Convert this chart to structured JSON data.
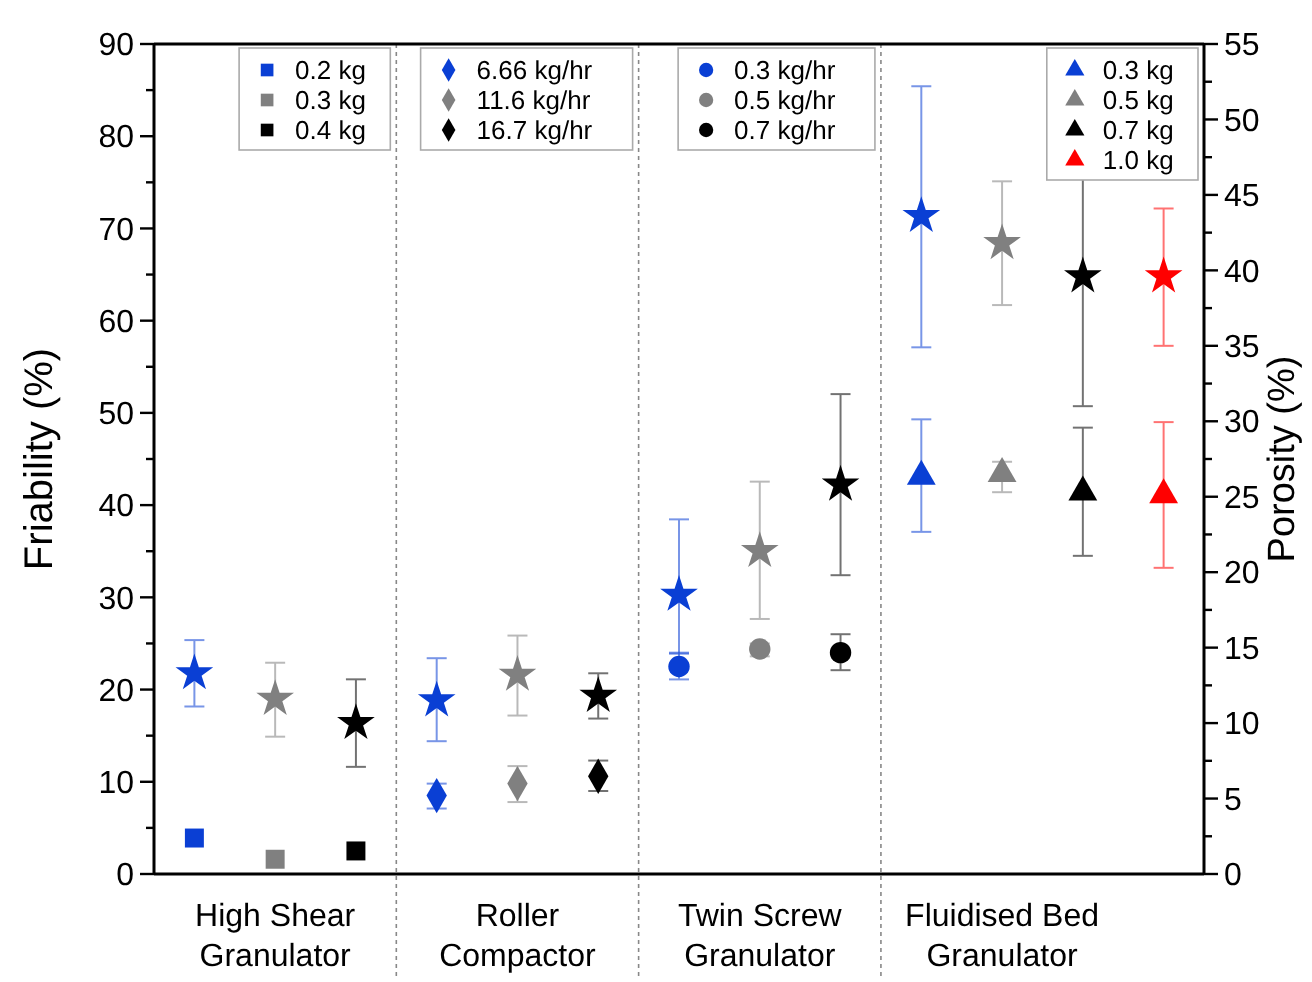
{
  "chart_data": {
    "type": "scatter",
    "ylabel": "Friability (%)",
    "y2label": "Porosity (%)",
    "categories": [
      null,
      "High Shear Granulator",
      null,
      null,
      "Roller Compactor",
      null,
      null,
      "Twin Screw Granulator",
      null,
      null,
      "Fluidised Bed Granulator",
      null,
      null
    ],
    "ylim": [
      0,
      90
    ],
    "yticks": [
      0,
      {
        "value": 5,
        "label": null
      },
      10,
      {
        "value": 15,
        "label": null
      },
      20,
      {
        "value": 25,
        "label": null
      },
      30,
      {
        "value": 35,
        "label": null
      },
      40,
      {
        "value": 45,
        "label": null
      },
      50,
      {
        "value": 55,
        "label": null
      },
      60,
      {
        "value": 65,
        "label": null
      },
      70,
      {
        "value": 75,
        "label": null
      },
      80,
      {
        "value": 85,
        "label": null
      },
      90
    ],
    "y2lim": [
      0,
      55
    ],
    "y2ticks": [
      0,
      {
        "value": 2.5,
        "label": null
      },
      5,
      {
        "value": 7.5,
        "label": null
      },
      10,
      {
        "value": 12.5,
        "label": null
      },
      15,
      {
        "value": 17.5,
        "label": null
      },
      20,
      {
        "value": 22.5,
        "label": null
      },
      25,
      {
        "value": 27.5,
        "label": null
      },
      30,
      {
        "value": 32.5,
        "label": null
      },
      35,
      {
        "value": 37.5,
        "label": null
      },
      40,
      {
        "value": 42.5,
        "label": null
      },
      45,
      {
        "value": 47.5,
        "label": null
      },
      50,
      {
        "value": 52.5,
        "label": null
      },
      55
    ],
    "legend": "top right",
    "grid": false,
    "series": [
      {
        "name": "0.2 kg",
        "color": "#0a3fd4",
        "marker": "square",
        "values": [
          3.9,
          null,
          null,
          null,
          null,
          null,
          null,
          null,
          null,
          null,
          null,
          null,
          null
        ]
      },
      {
        "name": "0.3 kg",
        "color": "#808080",
        "marker": "square",
        "values": [
          null,
          1.6,
          null,
          null,
          null,
          null,
          null,
          null,
          null,
          null,
          null,
          null,
          null
        ]
      },
      {
        "name": "0.4 kg",
        "color": "#000000",
        "marker": "square",
        "values": [
          null,
          null,
          2.5,
          null,
          null,
          null,
          null,
          null,
          null,
          null,
          null,
          null,
          null
        ]
      },
      {
        "color": "#0a3fd4",
        "marker": "star",
        "axis": "y2",
        "values": [
          13.3,
          null,
          null,
          null,
          null,
          null,
          null,
          null,
          null,
          null,
          null,
          null,
          null
        ],
        "errors": [
          [
            11.1,
            15.5
          ],
          null,
          null,
          null,
          null,
          null,
          null,
          null,
          null,
          null,
          null,
          null,
          null
        ]
      },
      {
        "color": "#808080",
        "marker": "star",
        "axis": "y2",
        "values": [
          null,
          11.6,
          null,
          null,
          null,
          null,
          null,
          null,
          null,
          null,
          null,
          null,
          null
        ],
        "errors": [
          null,
          [
            9.1,
            14.0
          ],
          null,
          null,
          null,
          null,
          null,
          null,
          null,
          null,
          null,
          null,
          null
        ]
      },
      {
        "color": "#000000",
        "marker": "star",
        "axis": "y2",
        "values": [
          null,
          null,
          10.0,
          null,
          null,
          null,
          null,
          null,
          null,
          null,
          null,
          null,
          null
        ],
        "errors": [
          null,
          null,
          [
            7.1,
            12.9
          ],
          null,
          null,
          null,
          null,
          null,
          null,
          null,
          null,
          null,
          null
        ]
      },
      {
        "name": "6.66 kg/hr",
        "color": "#0a3fd4",
        "marker": "diamond",
        "values": [
          null,
          null,
          null,
          8.5,
          null,
          null,
          null,
          null,
          null,
          null,
          null,
          null,
          null
        ],
        "errors": [
          null,
          null,
          null,
          [
            7.1,
            9.8
          ],
          null,
          null,
          null,
          null,
          null,
          null,
          null,
          null,
          null
        ]
      },
      {
        "name": "11.6 kg/hr",
        "color": "#808080",
        "marker": "diamond",
        "values": [
          null,
          null,
          null,
          null,
          9.8,
          null,
          null,
          null,
          null,
          null,
          null,
          null,
          null
        ],
        "errors": [
          null,
          null,
          null,
          null,
          [
            7.8,
            11.7
          ],
          null,
          null,
          null,
          null,
          null,
          null,
          null,
          null
        ]
      },
      {
        "name": "16.7 kg/hr",
        "color": "#000000",
        "marker": "diamond",
        "values": [
          null,
          null,
          null,
          null,
          null,
          10.6,
          null,
          null,
          null,
          null,
          null,
          null,
          null
        ],
        "errors": [
          null,
          null,
          null,
          null,
          null,
          [
            9.0,
            12.3
          ],
          null,
          null,
          null,
          null,
          null,
          null,
          null
        ]
      },
      {
        "color": "#0a3fd4",
        "marker": "star",
        "axis": "y2",
        "values": [
          null,
          null,
          null,
          11.5,
          null,
          null,
          null,
          null,
          null,
          null,
          null,
          null,
          null
        ],
        "errors": [
          null,
          null,
          null,
          [
            8.8,
            14.3
          ],
          null,
          null,
          null,
          null,
          null,
          null,
          null,
          null,
          null
        ]
      },
      {
        "color": "#808080",
        "marker": "star",
        "axis": "y2",
        "values": [
          null,
          null,
          null,
          null,
          13.2,
          null,
          null,
          null,
          null,
          null,
          null,
          null,
          null
        ],
        "errors": [
          null,
          null,
          null,
          null,
          [
            10.5,
            15.8
          ],
          null,
          null,
          null,
          null,
          null,
          null,
          null,
          null
        ]
      },
      {
        "color": "#000000",
        "marker": "star",
        "axis": "y2",
        "values": [
          null,
          null,
          null,
          null,
          null,
          11.8,
          null,
          null,
          null,
          null,
          null,
          null,
          null
        ],
        "errors": [
          null,
          null,
          null,
          null,
          null,
          [
            10.3,
            13.3
          ],
          null,
          null,
          null,
          null,
          null,
          null,
          null
        ]
      },
      {
        "name": "0.3 kg/hr",
        "color": "#0a3fd4",
        "marker": "circle",
        "values": [
          null,
          null,
          null,
          null,
          null,
          null,
          22.5,
          null,
          null,
          null,
          null,
          null,
          null
        ],
        "errors": [
          null,
          null,
          null,
          null,
          null,
          null,
          [
            21.1,
            24.0
          ],
          null,
          null,
          null,
          null,
          null,
          null
        ]
      },
      {
        "name": "0.5 kg/hr",
        "color": "#808080",
        "marker": "circle",
        "values": [
          null,
          null,
          null,
          null,
          null,
          null,
          null,
          24.4,
          null,
          null,
          null,
          null,
          null
        ],
        "errors": [
          null,
          null,
          null,
          null,
          null,
          null,
          null,
          [
            23.6,
            25.0
          ],
          null,
          null,
          null,
          null,
          null
        ]
      },
      {
        "name": "0.7 kg/hr",
        "color": "#000000",
        "marker": "circle",
        "values": [
          null,
          null,
          null,
          null,
          null,
          null,
          null,
          null,
          24.0,
          null,
          null,
          null,
          null
        ],
        "errors": [
          null,
          null,
          null,
          null,
          null,
          null,
          null,
          null,
          [
            22.1,
            26.0
          ],
          null,
          null,
          null,
          null
        ]
      },
      {
        "color": "#0a3fd4",
        "marker": "star",
        "axis": "y2",
        "values": [
          null,
          null,
          null,
          null,
          null,
          null,
          18.5,
          null,
          null,
          null,
          null,
          null,
          null
        ],
        "errors": [
          null,
          null,
          null,
          null,
          null,
          null,
          [
            14.6,
            23.5
          ],
          null,
          null,
          null,
          null,
          null,
          null
        ]
      },
      {
        "color": "#808080",
        "marker": "star",
        "axis": "y2",
        "values": [
          null,
          null,
          null,
          null,
          null,
          null,
          null,
          21.4,
          null,
          null,
          null,
          null,
          null
        ],
        "errors": [
          null,
          null,
          null,
          null,
          null,
          null,
          null,
          [
            16.9,
            26.0
          ],
          null,
          null,
          null,
          null,
          null
        ]
      },
      {
        "color": "#000000",
        "marker": "star",
        "axis": "y2",
        "values": [
          null,
          null,
          null,
          null,
          null,
          null,
          null,
          null,
          25.8,
          null,
          null,
          null,
          null
        ],
        "errors": [
          null,
          null,
          null,
          null,
          null,
          null,
          null,
          null,
          [
            19.8,
            31.8
          ],
          null,
          null,
          null,
          null
        ]
      },
      {
        "name": "0.3 kg",
        "color": "#0a3fd4",
        "marker": "triangle",
        "values": [
          null,
          null,
          null,
          null,
          null,
          null,
          null,
          null,
          null,
          43.1,
          null,
          null,
          null
        ],
        "errors": [
          null,
          null,
          null,
          null,
          null,
          null,
          null,
          null,
          null,
          [
            37.1,
            49.3
          ],
          null,
          null,
          null
        ]
      },
      {
        "name": "0.5 kg",
        "color": "#808080",
        "marker": "triangle",
        "values": [
          null,
          null,
          null,
          null,
          null,
          null,
          null,
          null,
          null,
          null,
          43.4,
          null,
          null
        ],
        "errors": [
          null,
          null,
          null,
          null,
          null,
          null,
          null,
          null,
          null,
          null,
          [
            41.4,
            44.7
          ],
          null,
          null
        ]
      },
      {
        "name": "0.7 kg",
        "color": "#000000",
        "marker": "triangle",
        "values": [
          null,
          null,
          null,
          null,
          null,
          null,
          null,
          null,
          null,
          null,
          null,
          41.4,
          null
        ],
        "errors": [
          null,
          null,
          null,
          null,
          null,
          null,
          null,
          null,
          null,
          null,
          null,
          [
            34.5,
            48.4
          ],
          null
        ]
      },
      {
        "name": "1.0 kg",
        "color": "#ff0000",
        "marker": "triangle",
        "values": [
          null,
          null,
          null,
          null,
          null,
          null,
          null,
          null,
          null,
          null,
          null,
          null,
          41.1
        ],
        "errors": [
          null,
          null,
          null,
          null,
          null,
          null,
          null,
          null,
          null,
          null,
          null,
          null,
          [
            33.2,
            49.0
          ]
        ]
      },
      {
        "color": "#0a3fd4",
        "marker": "star",
        "axis": "y2",
        "values": [
          null,
          null,
          null,
          null,
          null,
          null,
          null,
          null,
          null,
          43.6,
          null,
          null,
          null
        ],
        "errors": [
          null,
          null,
          null,
          null,
          null,
          null,
          null,
          null,
          null,
          [
            34.9,
            52.2
          ],
          null,
          null,
          null
        ]
      },
      {
        "color": "#808080",
        "marker": "star",
        "axis": "y2",
        "values": [
          null,
          null,
          null,
          null,
          null,
          null,
          null,
          null,
          null,
          null,
          41.8,
          null,
          null
        ],
        "errors": [
          null,
          null,
          null,
          null,
          null,
          null,
          null,
          null,
          null,
          null,
          [
            37.7,
            45.9
          ],
          null,
          null
        ]
      },
      {
        "color": "#000000",
        "marker": "star",
        "axis": "y2",
        "values": [
          null,
          null,
          null,
          null,
          null,
          null,
          null,
          null,
          null,
          null,
          null,
          39.6,
          null
        ],
        "errors": [
          null,
          null,
          null,
          null,
          null,
          null,
          null,
          null,
          null,
          null,
          null,
          [
            31.0,
            48.1
          ],
          null
        ]
      },
      {
        "color": "#ff0000",
        "marker": "star",
        "axis": "y2",
        "values": [
          null,
          null,
          null,
          null,
          null,
          null,
          null,
          null,
          null,
          null,
          null,
          null,
          39.6
        ],
        "errors": [
          null,
          null,
          null,
          null,
          null,
          null,
          null,
          null,
          null,
          null,
          null,
          null,
          [
            35.0,
            44.1
          ]
        ]
      }
    ]
  }
}
